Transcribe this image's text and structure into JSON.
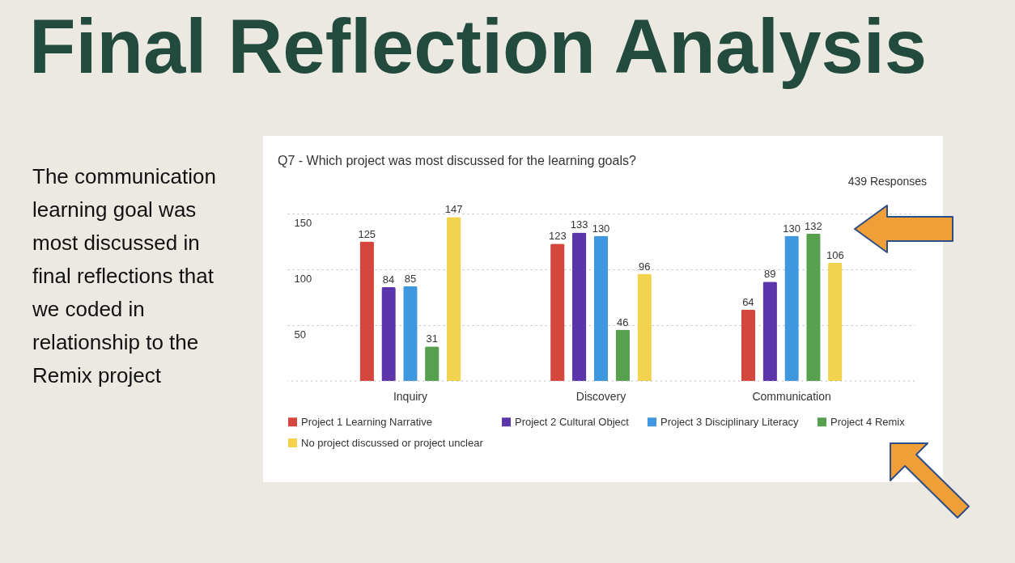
{
  "chart_data": {
    "type": "bar",
    "title": "Final Reflection Analysis",
    "subtitle": "Q7 - Which project was most discussed for the learning goals?",
    "annotations": [
      "439 Responses",
      "The communication learning goal was most discussed in final reflections that we coded in relationship to the Remix project"
    ],
    "categories": [
      "Inquiry",
      "Discovery",
      "Communication"
    ],
    "series": [
      {
        "name": "Project 1 Learning Narrative",
        "color": "#d5463c",
        "values": [
          125,
          123,
          64
        ]
      },
      {
        "name": "Project 2 Cultural Object",
        "color": "#5c35aa",
        "values": [
          84,
          133,
          89
        ]
      },
      {
        "name": "Project 3 Disciplinary Literacy",
        "color": "#3f97df",
        "values": [
          85,
          130,
          130
        ]
      },
      {
        "name": "Project 4 Remix",
        "color": "#57a04e",
        "values": [
          31,
          46,
          132
        ]
      },
      {
        "name": "No project discussed or project unclear",
        "color": "#f3d34e",
        "values": [
          147,
          96,
          106
        ]
      }
    ],
    "ylim": [
      0,
      150
    ],
    "yticks": [
      50,
      100,
      150
    ],
    "grid": "y",
    "legend": "bottom",
    "data_labels": true
  }
}
